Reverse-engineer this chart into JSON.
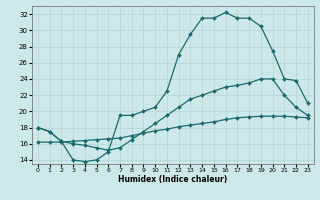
{
  "xlabel": "Humidex (Indice chaleur)",
  "xlim": [
    -0.5,
    23.5
  ],
  "ylim": [
    13.5,
    33
  ],
  "yticks": [
    14,
    16,
    18,
    20,
    22,
    24,
    26,
    28,
    30,
    32
  ],
  "xticks": [
    0,
    1,
    2,
    3,
    4,
    5,
    6,
    7,
    8,
    9,
    10,
    11,
    12,
    13,
    14,
    15,
    16,
    17,
    18,
    19,
    20,
    21,
    22,
    23
  ],
  "bg_color": "#cde8e8",
  "line_color": "#1a6b6b",
  "grid_color": "#b8d8d8",
  "line1_x": [
    0,
    1,
    2,
    3,
    4,
    5,
    6,
    7,
    8,
    9,
    10,
    11,
    12,
    13,
    14,
    15,
    16,
    17,
    18,
    19,
    20,
    21,
    22,
    23
  ],
  "line1_y": [
    18,
    17.5,
    16.3,
    14.0,
    13.8,
    14.0,
    15.0,
    19.5,
    19.5,
    20.0,
    20.5,
    22.5,
    27.0,
    29.5,
    31.5,
    31.5,
    32.2,
    31.5,
    31.5,
    30.5,
    27.5,
    24.0,
    23.8,
    21.0
  ],
  "line2_x": [
    0,
    1,
    2,
    3,
    4,
    5,
    6,
    7,
    8,
    9,
    10,
    11,
    12,
    13,
    14,
    15,
    16,
    17,
    18,
    19,
    20,
    21,
    22,
    23
  ],
  "line2_y": [
    18.0,
    17.5,
    16.3,
    16.0,
    15.8,
    15.5,
    15.2,
    15.5,
    16.5,
    17.5,
    18.5,
    19.5,
    20.5,
    21.5,
    22.0,
    22.5,
    23.0,
    23.2,
    23.5,
    24.0,
    24.0,
    22.0,
    20.5,
    19.5
  ],
  "line3_x": [
    0,
    1,
    2,
    3,
    4,
    5,
    6,
    7,
    8,
    9,
    10,
    11,
    12,
    13,
    14,
    15,
    16,
    17,
    18,
    19,
    20,
    21,
    22,
    23
  ],
  "line3_y": [
    16.2,
    16.2,
    16.2,
    16.3,
    16.4,
    16.5,
    16.6,
    16.7,
    17.0,
    17.3,
    17.6,
    17.8,
    18.1,
    18.3,
    18.5,
    18.7,
    19.0,
    19.2,
    19.3,
    19.4,
    19.4,
    19.4,
    19.3,
    19.2
  ]
}
